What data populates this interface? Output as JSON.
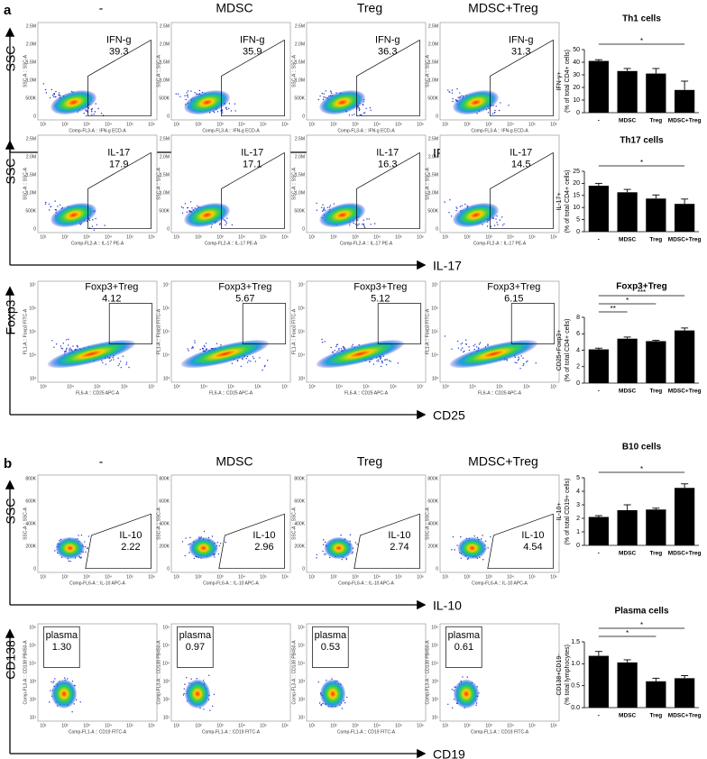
{
  "panels": [
    {
      "label": "a",
      "columns": [
        "-",
        "MDSC",
        "Treg",
        "MDSC+Treg"
      ],
      "rows": [
        {
          "y_axis": "SSC",
          "x_axis": "IFN-γ",
          "plot_y_label": "SSC-A :: SSC-A",
          "plot_x_label": "Comp-FL3-A :: IFN-g ECD-A",
          "yticks": [
            "2.5M",
            "2.0M",
            "1.5M",
            "1.0M",
            "500K",
            "0"
          ],
          "xticks": [
            "10¹",
            "10²",
            "10³",
            "10⁴",
            "10⁵",
            "10⁶"
          ],
          "gate": "IFN-g",
          "values": [
            "39.3",
            "35.9",
            "36.3",
            "31.3"
          ]
        },
        {
          "y_axis": "SSC",
          "x_axis": "IL-17",
          "plot_y_label": "SSC-A :: SSC-A",
          "plot_x_label": "Comp-FL2-A :: IL-17 PE-A",
          "yticks": [
            "2.5M",
            "2.0M",
            "1.5M",
            "1.0M",
            "500K",
            "0"
          ],
          "xticks": [
            "10¹",
            "10²",
            "10³",
            "10⁴",
            "10⁵",
            "10⁶"
          ],
          "gate": "IL-17",
          "values": [
            "17.9",
            "17.1",
            "16.3",
            "14.5"
          ]
        },
        {
          "y_axis": "Foxp3",
          "x_axis": "CD25",
          "plot_y_label": "FL1-A :: Foxp3 FITC-A",
          "plot_x_label": "FL6-A :: CD25 APC-A",
          "yticks": [
            "10⁷",
            "10⁶",
            "10⁵",
            "10⁴",
            "10³"
          ],
          "xticks": [
            "10³",
            "10⁴",
            "10⁵",
            "10⁶",
            "10⁷"
          ],
          "gate": "Foxp3+Treg",
          "values": [
            "4.12",
            "5.67",
            "5.12",
            "6.15"
          ]
        }
      ]
    },
    {
      "label": "b",
      "columns": [
        "-",
        "MDSC",
        "Treg",
        "MDSC+Treg"
      ],
      "rows": [
        {
          "y_axis": "SSC",
          "x_axis": "IL-10",
          "plot_y_label": "SSC-A :: SSC-A",
          "plot_x_label": "Comp-FL6-A :: IL-10 APC-A",
          "yticks": [
            "800K",
            "600K",
            "400K",
            "200K",
            "0"
          ],
          "xticks": [
            "10¹",
            "10²",
            "10³",
            "10⁴",
            "10⁵",
            "10⁶"
          ],
          "gate": "IL-10",
          "values": [
            "2.22",
            "2.96",
            "2.74",
            "4.54"
          ]
        },
        {
          "y_axis": "CD138",
          "x_axis": "CD19",
          "plot_y_label": "Comp-FL3-A :: CD138 PB450-A",
          "plot_x_label": "Comp-FL1-A :: CD19 FITC-A",
          "yticks": [
            "10⁶",
            "10⁵",
            "10⁴",
            "10³",
            "10²",
            "10¹"
          ],
          "xticks": [
            "10¹",
            "10²",
            "10³",
            "10⁴",
            "10⁵",
            "10⁶"
          ],
          "gate": "plasma",
          "values": [
            "1.30",
            "0.97",
            "0.53",
            "0.61"
          ]
        }
      ]
    }
  ],
  "chart_data": [
    {
      "type": "bar",
      "title": "Th1 cells",
      "y_label": [
        "IFN-γ+",
        "(% of total CD4+ cells)"
      ],
      "categories": [
        "-",
        "MDSC",
        "Treg",
        "MDSC+Treg"
      ],
      "values": [
        41,
        33,
        31,
        18
      ],
      "errors": [
        1,
        2,
        4,
        7
      ],
      "color": "#000000",
      "ylim": [
        0,
        50
      ],
      "yticks": [
        0,
        10,
        20,
        30,
        40,
        50
      ],
      "significance": [
        {
          "label": "*",
          "between": [
            0,
            3
          ]
        }
      ]
    },
    {
      "type": "bar",
      "title": "Th17 cells",
      "y_label": [
        "IL-17+",
        "(% of total CD4+ cells)"
      ],
      "categories": [
        "-",
        "MDSC",
        "Treg",
        "MDSC+Treg"
      ],
      "values": [
        19,
        16.3,
        13.7,
        11.5
      ],
      "errors": [
        1,
        1.2,
        1.5,
        2
      ],
      "color": "#000000",
      "ylim": [
        0,
        25
      ],
      "yticks": [
        0,
        5,
        10,
        15,
        20,
        25
      ],
      "significance": [
        {
          "label": "*",
          "between": [
            0,
            3
          ]
        }
      ]
    },
    {
      "type": "bar",
      "title": "Foxp3+Treg",
      "y_label": [
        "CD25+Foxp3+",
        "(% of total CD4+ cells)"
      ],
      "categories": [
        "-",
        "MDSC",
        "Treg",
        "MDSC+Treg"
      ],
      "values": [
        4.1,
        5.4,
        5.1,
        6.4
      ],
      "errors": [
        0.15,
        0.2,
        0.1,
        0.3
      ],
      "color": "#000000",
      "ylim": [
        0,
        8
      ],
      "yticks": [
        0,
        2,
        4,
        6,
        8
      ],
      "significance": [
        {
          "label": "**",
          "between": [
            0,
            1
          ]
        },
        {
          "label": "*",
          "between": [
            0,
            2
          ]
        },
        {
          "label": "***",
          "between": [
            0,
            3
          ]
        }
      ]
    },
    {
      "type": "bar",
      "title": "B10 cells",
      "y_label": [
        "IL-10+",
        "(% of total CD19+ cells)"
      ],
      "categories": [
        "-",
        "MDSC",
        "Treg",
        "MDSC+Treg"
      ],
      "values": [
        2.1,
        2.6,
        2.65,
        4.25
      ],
      "errors": [
        0.1,
        0.4,
        0.1,
        0.3
      ],
      "color": "#000000",
      "ylim": [
        0,
        5
      ],
      "yticks": [
        0,
        1,
        2,
        3,
        4,
        5
      ],
      "significance": [
        {
          "label": "*",
          "between": [
            0,
            3
          ]
        }
      ]
    },
    {
      "type": "bar",
      "title": "Plasma cells",
      "y_label": [
        "CD138+CD19-",
        "(% total lymphocytes)"
      ],
      "categories": [
        "-",
        "MDSC",
        "Treg",
        "MDSC+Treg"
      ],
      "values": [
        1.18,
        1.03,
        0.6,
        0.67
      ],
      "errors": [
        0.1,
        0.06,
        0.07,
        0.06
      ],
      "color": "#000000",
      "ylim": [
        0,
        1.5
      ],
      "yticks": [
        {
          "value": 0,
          "label": "0.0"
        },
        {
          "value": 0.5,
          "label": "0.5"
        },
        {
          "value": 1,
          "label": "1.0"
        },
        {
          "value": 1.5,
          "label": "1.5"
        }
      ],
      "significance": [
        {
          "label": "*",
          "between": [
            0,
            2
          ]
        },
        {
          "label": "*",
          "between": [
            0,
            3
          ]
        }
      ]
    }
  ]
}
